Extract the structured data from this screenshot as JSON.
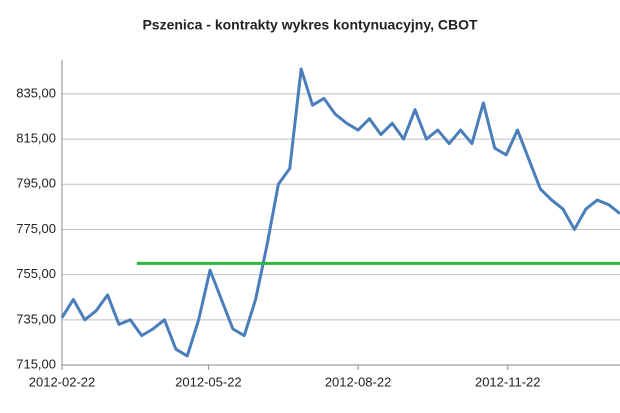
{
  "chart_data": {
    "type": "line",
    "title": "Pszenica - kontrakty wykres kontynuacyjny, CBOT",
    "x": [
      "2012-02-22",
      "2012-02-29",
      "2012-03-07",
      "2012-03-14",
      "2012-03-21",
      "2012-03-28",
      "2012-04-04",
      "2012-04-11",
      "2012-04-18",
      "2012-04-25",
      "2012-05-02",
      "2012-05-09",
      "2012-05-16",
      "2012-05-23",
      "2012-05-30",
      "2012-06-06",
      "2012-06-13",
      "2012-06-20",
      "2012-06-27",
      "2012-07-04",
      "2012-07-11",
      "2012-07-18",
      "2012-07-25",
      "2012-08-01",
      "2012-08-08",
      "2012-08-15",
      "2012-08-22",
      "2012-08-29",
      "2012-09-05",
      "2012-09-12",
      "2012-09-19",
      "2012-09-26",
      "2012-10-03",
      "2012-10-10",
      "2012-10-17",
      "2012-10-24",
      "2012-10-31",
      "2012-11-07",
      "2012-11-14",
      "2012-11-21",
      "2012-11-28",
      "2012-12-05",
      "2012-12-12",
      "2012-12-19",
      "2012-12-26",
      "2013-01-02",
      "2013-01-09",
      "2013-01-16",
      "2013-01-23",
      "2013-01-30"
    ],
    "series": [
      {
        "color": "#4a7ebb",
        "values": [
          736,
          744,
          735,
          739,
          746,
          733,
          735,
          728,
          731,
          735,
          722,
          719,
          735,
          757,
          744,
          731,
          728,
          744,
          768,
          795,
          802,
          846,
          830,
          833,
          826,
          822,
          819,
          824,
          817,
          822,
          815,
          828,
          815,
          819,
          813,
          819,
          813,
          831,
          811,
          808,
          819,
          806,
          793,
          788,
          784,
          775,
          784,
          788,
          786,
          782
        ]
      },
      {
        "color": "#2db83d",
        "x": [
          "2012-04-08",
          "2013-01-30"
        ],
        "values": [
          760,
          760
        ]
      }
    ],
    "xlim": [
      "2012-02-22",
      "2013-01-30"
    ],
    "xticks": [
      "2012-02-22",
      "2012-05-22",
      "2012-08-22",
      "2012-11-22"
    ],
    "ylim": [
      715,
      850
    ],
    "yticks": [
      {
        "value": 715,
        "label": "715,00"
      },
      {
        "value": 735,
        "label": "735,00"
      },
      {
        "value": 755,
        "label": "755,00"
      },
      {
        "value": 775,
        "label": "775,00"
      },
      {
        "value": 795,
        "label": "795,00"
      },
      {
        "value": 815,
        "label": "815,00"
      },
      {
        "value": 835,
        "label": "835,00"
      }
    ],
    "grid": true
  }
}
